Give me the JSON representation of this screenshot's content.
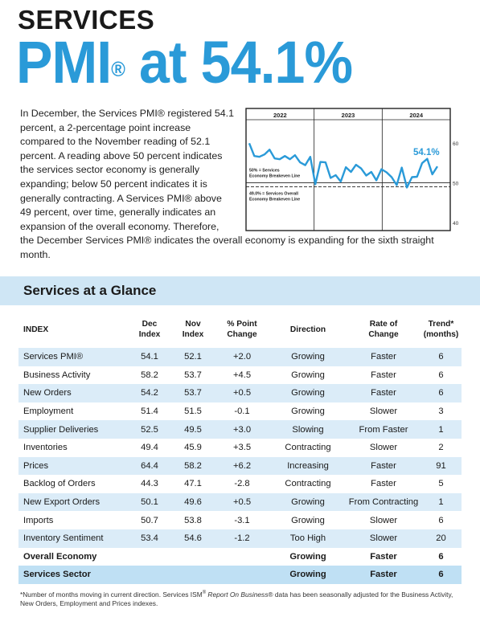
{
  "header": {
    "line1": "SERVICES",
    "line2": "PMI",
    "line2_reg": "®",
    "line3": " at 54.1%"
  },
  "intro": {
    "p1": "In December, the Services PMI® registered 54.1 percent, a 2-percentage point increase compared to the November reading of 52.1 percent. A reading above 50 percent indicates the services sector economy is generally expanding; below 50 percent indicates it is generally contracting. A Services PMI® above 49 percent, over time, generally indicates an expansion of the overall economy. Therefore,",
    "p2": "the December Services PMI® indicates the overall economy is expanding for the sixth straight month."
  },
  "chart_data": {
    "type": "line",
    "year_labels": [
      "2022",
      "2023",
      "2024"
    ],
    "ylim": [
      38,
      65
    ],
    "yticks": [
      60,
      50,
      40
    ],
    "last_label": "54.1%",
    "ref_lines": [
      {
        "value": 50,
        "label_1": "50% = Services",
        "label_2": "Economy Breakeven Line",
        "style": "solid"
      },
      {
        "value": 49,
        "label_1": "49.0% = Services Overall",
        "label_2": "Economy Breakeven Line",
        "style": "dashed"
      }
    ],
    "series": [
      {
        "values": [
          59.9,
          56.7,
          56.5,
          57.1,
          58.3,
          56.1,
          55.9,
          56.7,
          55.9,
          56.9,
          55.1,
          54.4,
          56.5,
          49.6,
          55.2,
          55.1,
          51.2,
          51.9,
          50.3,
          53.9,
          52.7,
          54.5,
          53.6,
          51.8,
          52.7,
          50.6,
          53.4,
          52.6,
          51.4,
          49.4,
          53.8,
          48.8,
          51.4,
          51.5,
          54.9,
          56.0,
          52.1,
          54.1
        ]
      }
    ],
    "color": "#2a9ad8"
  },
  "glance": {
    "title": "Services at a Glance",
    "headers": [
      "INDEX",
      "Dec\nIndex",
      "Nov\nIndex",
      "% Point\nChange",
      "Direction",
      "Rate of\nChange",
      "Trend*\n(months)"
    ],
    "rows": [
      [
        "Services PMI®",
        "54.1",
        "52.1",
        "+2.0",
        "Growing",
        "Faster",
        "6"
      ],
      [
        "Business Activity",
        "58.2",
        "53.7",
        "+4.5",
        "Growing",
        "Faster",
        "6"
      ],
      [
        "New Orders",
        "54.2",
        "53.7",
        "+0.5",
        "Growing",
        "Faster",
        "6"
      ],
      [
        "Employment",
        "51.4",
        "51.5",
        "-0.1",
        "Growing",
        "Slower",
        "3"
      ],
      [
        "Supplier Deliveries",
        "52.5",
        "49.5",
        "+3.0",
        "Slowing",
        "From Faster",
        "1"
      ],
      [
        "Inventories",
        "49.4",
        "45.9",
        "+3.5",
        "Contracting",
        "Slower",
        "2"
      ],
      [
        "Prices",
        "64.4",
        "58.2",
        "+6.2",
        "Increasing",
        "Faster",
        "91"
      ],
      [
        "Backlog of Orders",
        "44.3",
        "47.1",
        "-2.8",
        "Contracting",
        "Faster",
        "5"
      ],
      [
        "New Export Orders",
        "50.1",
        "49.6",
        "+0.5",
        "Growing",
        "From Contracting",
        "1"
      ],
      [
        "Imports",
        "50.7",
        "53.8",
        "-3.1",
        "Growing",
        "Slower",
        "6"
      ],
      [
        "Inventory Sentiment",
        "53.4",
        "54.6",
        "-1.2",
        "Too High",
        "Slower",
        "20"
      ],
      [
        "Overall Economy",
        "",
        "",
        "",
        "Growing",
        "Faster",
        "6"
      ],
      [
        "Services Sector",
        "",
        "",
        "",
        "Growing",
        "Faster",
        "6"
      ]
    ]
  },
  "footnote": {
    "a": "*Number of months moving in current direction. Services ISM",
    "reg": "®",
    "b": " Report On Business",
    "c": "® data has been seasonally adjusted for the Business Activity, New Orders, Employment and Prices indexes."
  }
}
